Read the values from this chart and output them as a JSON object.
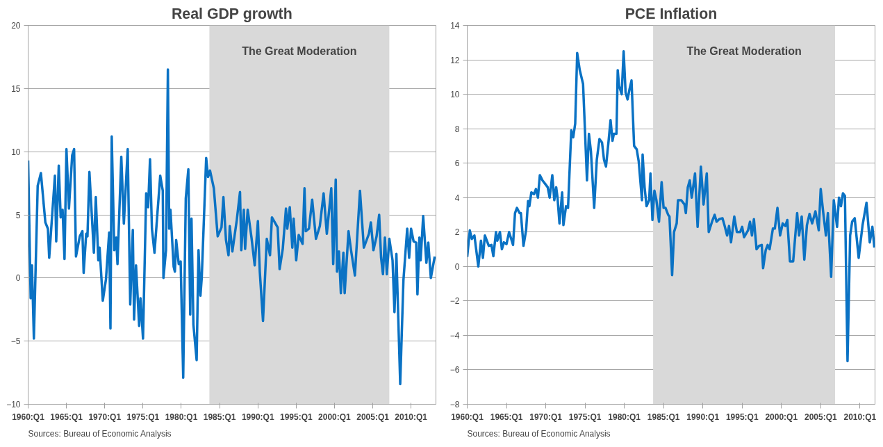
{
  "chart_data": [
    {
      "type": "line",
      "title": "Real GDP growth",
      "xlim": [
        "1960-01",
        "2013-04"
      ],
      "ylim": [
        -10,
        20
      ],
      "xticks": [
        {
          "value": "1960-01",
          "label": "1960:Q1"
        },
        {
          "value": "1965-01",
          "label": "1965:Q1"
        },
        {
          "value": "1970-01",
          "label": "1970:Q1"
        },
        {
          "value": "1975-01",
          "label": "1975:Q1"
        },
        {
          "value": "1980-01",
          "label": "1980:Q1"
        },
        {
          "value": "1985-01",
          "label": "1985:Q1"
        },
        {
          "value": "1990-01",
          "label": "1990:Q1"
        },
        {
          "value": "1995-01",
          "label": "1995:Q1"
        },
        {
          "value": "2000-01",
          "label": "2000:Q1"
        },
        {
          "value": "2005-01",
          "label": "2005:Q1"
        },
        {
          "value": "2010-01",
          "label": "2010:Q1"
        }
      ],
      "yticks": [
        -10,
        -5,
        0,
        5,
        10,
        15,
        20
      ],
      "grid": "y",
      "line_style": "solid",
      "marker": "none",
      "bands": [
        {
          "axis": "x",
          "from": "1983-09",
          "to": "2007-03",
          "label": "The Great Moderation",
          "color": "#d9d9d9"
        }
      ],
      "annotations": [
        "Sources:  Bureau of Economic Analysis"
      ],
      "series": [
        {
          "color": "#0a72c4",
          "x": [
            "1960-01",
            "1960-05",
            "1960-07",
            "1960-10",
            "1961-04",
            "1961-09",
            "1962-04",
            "1962-08",
            "1962-10",
            "1963-07",
            "1963-09",
            "1964-01",
            "1964-04",
            "1964-07",
            "1964-10",
            "1965-01",
            "1965-05",
            "1965-10",
            "1966-01",
            "1966-04",
            "1966-10",
            "1967-02",
            "1967-04",
            "1967-08",
            "1967-10",
            "1968-01",
            "1968-08",
            "1968-11",
            "1969-03",
            "1969-05",
            "1969-10",
            "1970-03",
            "1970-08",
            "1970-10",
            "1970-12",
            "1971-04",
            "1971-07",
            "1971-09",
            "1972-03",
            "1972-07",
            "1973-01",
            "1973-05",
            "1973-09",
            "1973-11",
            "1974-02",
            "1974-07",
            "1974-09",
            "1975-01",
            "1975-06",
            "1975-09",
            "1975-12",
            "1976-03",
            "1976-07",
            "1977-04",
            "1977-08",
            "1977-09",
            "1978-01",
            "1978-04",
            "1978-06",
            "1978-08",
            "1979-01",
            "1979-03",
            "1979-05",
            "1979-09",
            "1979-12",
            "1980-04",
            "1980-08",
            "1980-12",
            "1981-03",
            "1981-05",
            "1981-08",
            "1982-01",
            "1982-04",
            "1982-07",
            "1982-09",
            "1983-04",
            "1983-07",
            "1983-10",
            "1984-04",
            "1984-10",
            "1985-04",
            "1985-07",
            "1985-11",
            "1986-03",
            "1986-05",
            "1986-09",
            "1987-04",
            "1987-09",
            "1987-11",
            "1988-03",
            "1988-05",
            "1988-09",
            "1989-03",
            "1989-08",
            "1990-01",
            "1990-04",
            "1990-09",
            "1991-03",
            "1991-08",
            "1991-11",
            "1992-08",
            "1992-11",
            "1993-04",
            "1993-09",
            "1993-11",
            "1994-03",
            "1994-07",
            "1994-09",
            "1995-01",
            "1995-05",
            "1995-11",
            "1996-02",
            "1996-04",
            "1996-09",
            "1997-02",
            "1997-08",
            "1998-02",
            "1998-08",
            "1999-01",
            "1999-08",
            "1999-11",
            "2000-03",
            "2000-05",
            "2000-08",
            "2000-11",
            "2001-03",
            "2001-05",
            "2001-11",
            "2002-03",
            "2002-09",
            "2003-05",
            "2003-11",
            "2004-07",
            "2004-10",
            "2005-02",
            "2005-07",
            "2005-11",
            "2006-02",
            "2006-05",
            "2006-08",
            "2006-11",
            "2007-03",
            "2007-08",
            "2007-11",
            "2008-02",
            "2008-08",
            "2009-01",
            "2009-07",
            "2009-10",
            "2010-01",
            "2010-05",
            "2010-09",
            "2010-11",
            "2011-02",
            "2011-04",
            "2011-08",
            "2012-01",
            "2012-04",
            "2012-08",
            "2013-02"
          ],
          "values": [
            9.3,
            -1.6,
            1.0,
            -4.8,
            7.3,
            8.3,
            4.4,
            3.9,
            1.6,
            8.1,
            2.9,
            8.9,
            4.8,
            5.4,
            1.5,
            10.2,
            5.5,
            9.7,
            10.2,
            1.7,
            3.3,
            3.7,
            0.4,
            3.5,
            3.3,
            8.4,
            2.0,
            6.4,
            1.4,
            2.4,
            -1.8,
            -0.1,
            3.6,
            -4.0,
            11.2,
            2.2,
            3.2,
            1.1,
            9.6,
            4.3,
            10.2,
            -2.1,
            3.8,
            -3.3,
            1.0,
            -3.8,
            -1.6,
            -4.8,
            6.7,
            5.6,
            9.4,
            3.9,
            2.0,
            8.1,
            6.9,
            0.0,
            2.2,
            16.5,
            3.9,
            5.4,
            0.9,
            0.5,
            3.0,
            1.1,
            1.3,
            -7.9,
            6.3,
            8.6,
            -2.9,
            4.7,
            -3.7,
            -6.5,
            2.2,
            -1.4,
            0.0,
            9.5,
            8.0,
            8.5,
            7.1,
            3.3,
            4.0,
            6.4,
            3.0,
            1.8,
            4.1,
            2.1,
            4.6,
            6.8,
            2.2,
            5.4,
            2.3,
            5.4,
            3.2,
            1.0,
            4.5,
            0.5,
            -3.4,
            3.1,
            1.8,
            4.8,
            4.0,
            0.7,
            2.3,
            5.5,
            3.9,
            5.6,
            2.4,
            4.7,
            1.4,
            3.4,
            2.7,
            7.1,
            3.7,
            3.9,
            6.2,
            3.1,
            4.1,
            6.7,
            3.5,
            7.1,
            1.1,
            7.8,
            0.5,
            2.1,
            -1.2,
            2.0,
            -1.2,
            3.7,
            2.2,
            0.2,
            6.9,
            2.4,
            3.5,
            4.4,
            2.2,
            3.3,
            5.0,
            1.6,
            0.3,
            3.2,
            0.3,
            3.1,
            1.4,
            -2.7,
            1.9,
            -8.4,
            -0.2,
            3.9,
            1.6,
            3.9,
            2.9,
            2.8,
            -1.3,
            3.2,
            1.4,
            4.9,
            1.2,
            2.8,
            0.0,
            1.7
          ]
        }
      ]
    },
    {
      "type": "line",
      "title": "PCE Inflation",
      "xlim": [
        "1960-01",
        "2011-12"
      ],
      "ylim": [
        -8,
        14
      ],
      "xticks": [
        {
          "value": "1960-01",
          "label": "1960:Q1"
        },
        {
          "value": "1965-01",
          "label": "1965:Q1"
        },
        {
          "value": "1970-01",
          "label": "1970:Q1"
        },
        {
          "value": "1975-01",
          "label": "1975:Q1"
        },
        {
          "value": "1980-01",
          "label": "1980:Q1"
        },
        {
          "value": "1985-01",
          "label": "1985:Q1"
        },
        {
          "value": "1990-01",
          "label": "1990:Q1"
        },
        {
          "value": "1995-01",
          "label": "1995:Q1"
        },
        {
          "value": "2000-01",
          "label": "2000:Q1"
        },
        {
          "value": "2005-01",
          "label": "2005:Q1"
        },
        {
          "value": "2010-01",
          "label": "2010:Q1"
        }
      ],
      "yticks": [
        -8,
        -6,
        -4,
        -2,
        0,
        2,
        4,
        6,
        8,
        10,
        12,
        14
      ],
      "grid": "y",
      "line_style": "solid",
      "marker": "none",
      "bands": [
        {
          "axis": "x",
          "from": "1983-09",
          "to": "2006-11",
          "label": "The Great Moderation",
          "color": "#d9d9d9"
        }
      ],
      "annotations": [
        "Sources:  Bureau of Economic Analysis"
      ],
      "series": [
        {
          "color": "#0a72c4",
          "x": [
            "1960-01",
            "1960-05",
            "1960-08",
            "1960-12",
            "1961-06",
            "1961-10",
            "1962-01",
            "1962-04",
            "1962-10",
            "1963-02",
            "1963-05",
            "1963-09",
            "1963-11",
            "1964-03",
            "1964-06",
            "1964-09",
            "1965-01",
            "1965-05",
            "1965-11",
            "1966-02",
            "1966-05",
            "1966-09",
            "1966-11",
            "1967-03",
            "1967-07",
            "1967-10",
            "1967-12",
            "1968-03",
            "1968-07",
            "1968-10",
            "1969-01",
            "1969-04",
            "1969-08",
            "1969-12",
            "1970-04",
            "1970-07",
            "1970-11",
            "1971-02",
            "1971-05",
            "1971-07",
            "1971-10",
            "1972-02",
            "1972-04",
            "1972-08",
            "1972-11",
            "1973-04",
            "1973-07",
            "1973-10",
            "1974-01",
            "1974-05",
            "1974-10",
            "1975-01",
            "1975-04",
            "1975-07",
            "1975-10",
            "1976-03",
            "1976-07",
            "1976-11",
            "1977-03",
            "1977-06",
            "1977-09",
            "1978-01",
            "1978-04",
            "1978-07",
            "1978-09",
            "1979-01",
            "1979-03",
            "1979-05",
            "1979-09",
            "1979-12",
            "1980-03",
            "1980-06",
            "1980-09",
            "1980-12",
            "1981-04",
            "1981-08",
            "1981-11",
            "1982-04",
            "1982-05",
            "1982-08",
            "1982-11",
            "1983-03",
            "1983-05",
            "1983-08",
            "1983-11",
            "1984-02",
            "1984-06",
            "1984-10",
            "1985-01",
            "1985-04",
            "1985-08",
            "1985-10",
            "1986-02",
            "1986-05",
            "1986-09",
            "1986-11",
            "1987-04",
            "1987-09",
            "1987-11",
            "1988-02",
            "1988-05",
            "1988-08",
            "1989-01",
            "1989-05",
            "1989-10",
            "1990-02",
            "1990-07",
            "1990-10",
            "1991-03",
            "1991-07",
            "1991-10",
            "1992-02",
            "1992-07",
            "1992-10",
            "1993-02",
            "1993-05",
            "1993-08",
            "1994-01",
            "1994-05",
            "1994-10",
            "1995-01",
            "1995-04",
            "1995-10",
            "1996-01",
            "1996-04",
            "1996-07",
            "1996-11",
            "1997-03",
            "1997-07",
            "1997-09",
            "1998-01",
            "1998-04",
            "1998-07",
            "1998-12",
            "1999-03",
            "1999-07",
            "1999-11",
            "2000-03",
            "2000-07",
            "2000-10",
            "2001-02",
            "2001-07",
            "2002-01",
            "2002-04",
            "2002-08",
            "2002-12",
            "2003-04",
            "2003-08",
            "2003-12",
            "2004-05",
            "2004-10",
            "2005-01",
            "2005-05",
            "2005-09",
            "2005-12",
            "2006-05",
            "2006-09",
            "2007-02",
            "2007-05",
            "2007-08",
            "2007-11",
            "2008-02",
            "2008-06",
            "2008-10",
            "2009-01",
            "2009-05",
            "2009-11",
            "2010-05",
            "2010-11",
            "2011-04",
            "2011-08",
            "2011-11"
          ],
          "values": [
            0.55,
            2.1,
            1.6,
            1.8,
            0.0,
            1.5,
            0.5,
            1.8,
            1.2,
            1.25,
            0.6,
            2.0,
            1.5,
            2.0,
            1.0,
            1.4,
            1.3,
            2.0,
            1.25,
            3.1,
            3.4,
            3.1,
            3.1,
            1.2,
            2.1,
            3.8,
            3.5,
            4.3,
            4.2,
            4.5,
            4.0,
            5.3,
            5.0,
            4.8,
            4.6,
            4.0,
            5.3,
            3.85,
            4.6,
            4.0,
            2.5,
            4.3,
            2.4,
            3.5,
            3.4,
            7.9,
            7.5,
            8.3,
            12.4,
            11.4,
            10.6,
            7.8,
            5.0,
            7.7,
            6.7,
            3.4,
            6.2,
            7.4,
            7.2,
            6.2,
            5.8,
            7.3,
            8.5,
            7.3,
            7.7,
            7.7,
            11.4,
            10.5,
            10.0,
            12.5,
            10.1,
            9.7,
            10.3,
            10.8,
            7.0,
            6.8,
            6.1,
            3.85,
            6.5,
            4.6,
            3.5,
            3.85,
            5.4,
            2.7,
            4.4,
            3.85,
            2.6,
            4.9,
            3.4,
            3.4,
            3.0,
            2.9,
            -0.5,
            2.0,
            2.5,
            3.85,
            3.85,
            3.6,
            3.1,
            4.6,
            5.0,
            4.0,
            5.4,
            2.3,
            5.8,
            3.6,
            5.4,
            2.0,
            2.6,
            3.0,
            2.6,
            2.75,
            2.8,
            2.4,
            1.8,
            2.35,
            1.4,
            2.9,
            2.0,
            2.0,
            2.3,
            1.7,
            2.1,
            2.6,
            1.8,
            2.75,
            1.0,
            1.2,
            1.25,
            -0.1,
            0.95,
            1.25,
            1.0,
            2.2,
            2.2,
            3.4,
            1.8,
            2.5,
            2.35,
            2.7,
            0.3,
            0.3,
            3.1,
            1.8,
            2.9,
            0.4,
            2.4,
            3.05,
            2.5,
            3.2,
            2.1,
            4.5,
            3.1,
            1.8,
            3.1,
            -0.6,
            3.85,
            2.3,
            4.0,
            3.5,
            4.25,
            4.1,
            -5.5,
            1.8,
            2.6,
            2.8,
            0.5,
            2.4,
            3.7,
            1.4,
            2.3,
            1.1
          ]
        }
      ]
    }
  ]
}
